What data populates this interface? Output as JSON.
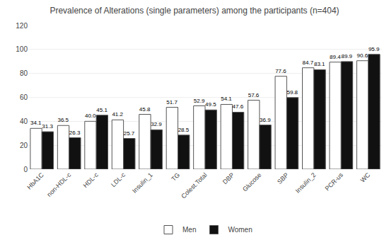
{
  "chart_data": {
    "type": "bar",
    "title": "Prevalence of Alterations (single parameters) among the participants (n=404)",
    "categories": [
      "HbA1C",
      "non-HDL-c",
      "HDL-c",
      "LDL-c",
      "Insulin_1",
      "TG",
      "Colest.Total",
      "DBP",
      "Glucose",
      "SBP",
      "Insulin_2",
      "PCR-us",
      "WC"
    ],
    "series": [
      {
        "name": "Men",
        "color": "#ffffff",
        "values": [
          34.1,
          36.5,
          40.0,
          41.2,
          45.8,
          51.7,
          52.9,
          54.1,
          57.6,
          77.6,
          84.7,
          89.4,
          90.6
        ],
        "value_labels": [
          "34.1",
          "36.5",
          "40.0",
          "41.2",
          "45.8",
          "51.7",
          "52.9",
          "54.1",
          "57.6",
          "77.6",
          "84.7",
          "89.4",
          "90.6"
        ]
      },
      {
        "name": "Women",
        "color": "#111111",
        "values": [
          31.3,
          26.3,
          45.1,
          25.7,
          32.9,
          28.5,
          49.5,
          47.6,
          36.9,
          59.8,
          83.1,
          89.9,
          95.9
        ],
        "value_labels": [
          "31.3",
          "26.3",
          "45.1",
          "25.7",
          "32.9",
          "28.5",
          "49.5",
          "47.6",
          "36.9",
          "59.8",
          "83.1",
          "89.9",
          "95.9"
        ]
      }
    ],
    "ylim": [
      0,
      120
    ],
    "yticks": [
      0,
      20,
      40,
      60,
      80,
      100,
      120
    ],
    "grid": true,
    "legend": "bottom",
    "data_labels": true
  }
}
